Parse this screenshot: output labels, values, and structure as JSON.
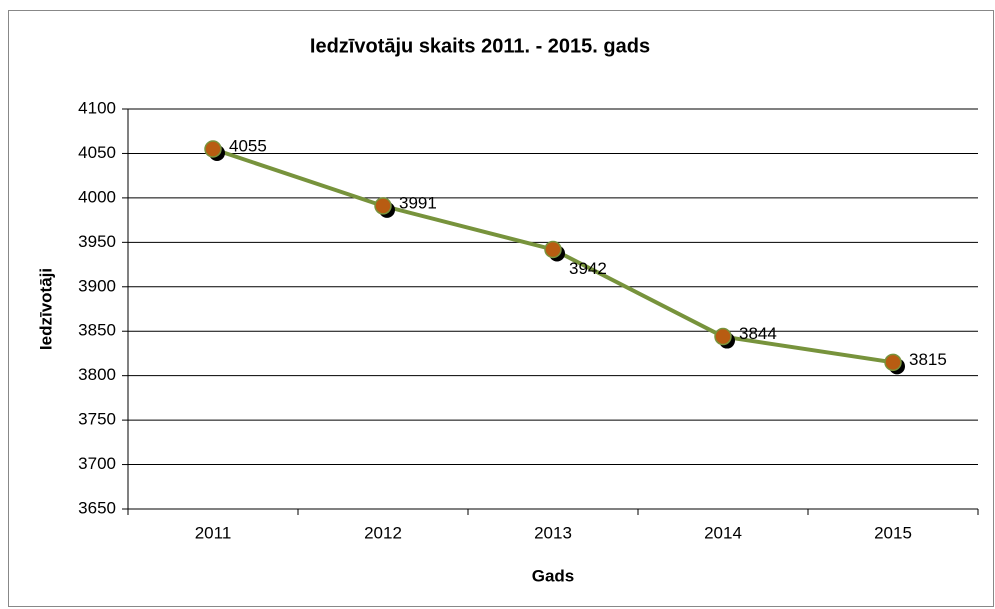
{
  "chart_data": {
    "type": "line",
    "title": "Iedzīvotāju skaits 2011. - 2015. gads",
    "x_label": "Gads",
    "y_label": "Iedzīvotāji",
    "categories": [
      "2011",
      "2012",
      "2013",
      "2014",
      "2015"
    ],
    "series": [
      {
        "name": "Iedzīvotāji",
        "color": "#77933c",
        "marker_color": "#b85c12",
        "values": [
          4055,
          3991,
          3942,
          3844,
          3815
        ]
      }
    ],
    "ylim": [
      3650,
      4100
    ],
    "yticks": [
      3650,
      3700,
      3750,
      3800,
      3850,
      3900,
      3950,
      4000,
      4050,
      4100
    ],
    "grid": true
  }
}
